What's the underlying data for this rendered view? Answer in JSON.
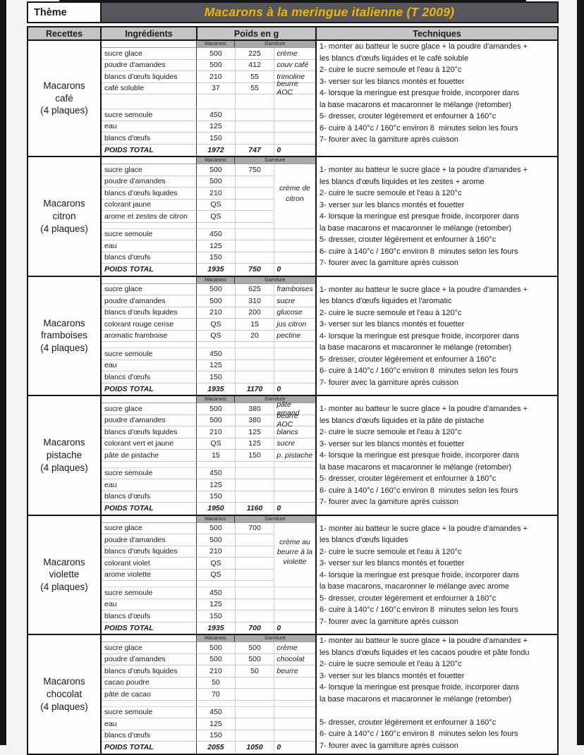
{
  "page": {
    "theme_label": "Thème",
    "title": "Macarons à la meringue italienne (T 2009)",
    "columns": {
      "recettes": "Recettes",
      "ingredients": "Ingrédients",
      "poids": "Poids en g",
      "techniques": "Techniques"
    },
    "subheaders": {
      "macarons": "Macarons",
      "garniture": "Garniture"
    },
    "colors": {
      "title_band": "#56575a",
      "title_text": "#efb40c",
      "header_fill": "#c4c4c2",
      "subheader_fill": "#a9a9a7",
      "border": "#161616"
    }
  },
  "recipes": [
    {
      "key": "cafe",
      "name_lines": [
        "Macarons",
        "café",
        "(4 plaques)"
      ],
      "gap": "large",
      "tech_flush": true,
      "merged_label": null,
      "base_rows": [
        {
          "ing": "sucre glace",
          "mac": "500",
          "garn": "225",
          "lab": "crème"
        },
        {
          "ing": "poudre d'amandes",
          "mac": "500",
          "garn": "412",
          "lab": "couv café"
        },
        {
          "ing": "blancs d'œufs liquides",
          "mac": "210",
          "garn": "55",
          "lab": "trimoline"
        },
        {
          "ing": "café soluble",
          "mac": "37",
          "garn": "55",
          "lab": "beurre AOC"
        }
      ],
      "meringue_rows": [
        {
          "ing": "sucre semoule",
          "mac": "450"
        },
        {
          "ing": "eau",
          "mac": "125"
        },
        {
          "ing": "blancs d'œufs",
          "mac": "150"
        }
      ],
      "total": {
        "label": "POIDS TOTAL",
        "mac": "1972",
        "garn": "747",
        "zero": "0"
      },
      "tech_lines": [
        "1- monter au batteur le sucre glace + la poudre d'amandes +",
        "les blancs d'œufs liquides et le café soluble",
        "2- cuire le sucre semoule et l'eau à 120°c",
        "3- verser sur les blancs montés et fouetter",
        "4- lorsque la meringue est presque froide, incorporer dans",
        "la base macarons et macaronner le mélange (retomber)",
        "5- dresser, crouter légèrement et enfourner à 160°c",
        "6- cuire à 140°c / 160°c environ 8  minutes selon les fours",
        "7- fourer avec la garniture après cuisson"
      ]
    },
    {
      "key": "citron",
      "name_lines": [
        "Macarons",
        "citron",
        "(4 plaques)"
      ],
      "gap": "small",
      "tech_flush": false,
      "merged_label": "crème de citron",
      "base_rows": [
        {
          "ing": "sucre glace",
          "mac": "500",
          "garn": "750",
          "lab": ""
        },
        {
          "ing": "poudre d'amandes",
          "mac": "500",
          "garn": "",
          "lab": ""
        },
        {
          "ing": "blancs d'œufs liquides",
          "mac": "210",
          "garn": "",
          "lab": ""
        },
        {
          "ing": "colorant jaune",
          "mac": "QS",
          "garn": "",
          "lab": ""
        },
        {
          "ing": "arome et zestes de citron",
          "mac": "QS",
          "garn": "",
          "lab": ""
        }
      ],
      "meringue_rows": [
        {
          "ing": "sucre semoule",
          "mac": "450"
        },
        {
          "ing": "eau",
          "mac": "125"
        },
        {
          "ing": "blancs d'œufs",
          "mac": "150"
        }
      ],
      "total": {
        "label": "POIDS TOTAL",
        "mac": "1935",
        "garn": "750",
        "zero": "0"
      },
      "tech_lines": [
        "1- monter au batteur le sucre glace + la poudre d'amandes +",
        "les blancs d'œufs liquides et les zestes + arome",
        "2- cuire le sucre semoule et l'eau à 120°c",
        "3- verser sur les blancs montés et fouetter",
        "4- lorsque la meringue est presque froide, incorporer dans",
        "la base macarons et macaronner le mélange (retomber)",
        "5- dresser, crouter légèrement et enfourner à 160°c",
        "6- cuire à 140°c / 160°c environ 8  minutes selon les fours",
        "7- fourer avec la garniture après cuisson"
      ]
    },
    {
      "key": "framboises",
      "name_lines": [
        "Macarons",
        "framboises",
        "(4 plaques)"
      ],
      "gap": "small",
      "tech_flush": false,
      "merged_label": null,
      "base_rows": [
        {
          "ing": "sucre glace",
          "mac": "500",
          "garn": "625",
          "lab": "framboises"
        },
        {
          "ing": "poudre d'amandes",
          "mac": "500",
          "garn": "310",
          "lab": "sucre"
        },
        {
          "ing": "blancs d'œufs liquides",
          "mac": "210",
          "garn": "200",
          "lab": "glucose"
        },
        {
          "ing": "colorant rouge cerise",
          "mac": "QS",
          "garn": "15",
          "lab": "jus citron"
        },
        {
          "ing": "aromatic framboise",
          "mac": "QS",
          "garn": "20",
          "lab": "pectine"
        }
      ],
      "meringue_rows": [
        {
          "ing": "sucre semoule",
          "mac": "450"
        },
        {
          "ing": "eau",
          "mac": "125"
        },
        {
          "ing": "blancs d'œufs",
          "mac": "150"
        }
      ],
      "total": {
        "label": "POIDS TOTAL",
        "mac": "1935",
        "garn": "1170",
        "zero": "0"
      },
      "tech_lines": [
        "1- monter au batteur le sucre glace + la poudre d'amandes +",
        "les blancs d'œufs liquides et l'aromatic",
        "2- cuire le sucre semoule et l'eau à 120°c",
        "3- verser sur les blancs montés et fouetter",
        "4- lorsque la meringue est presque froide, incorporer dans",
        "la base macarons et macaronner le mélange (retomber)",
        "5- dresser, crouter légèrement et enfourner à 160°c",
        "6- cuire à 140°c / 160°c environ 8  minutes selon les fours",
        "7- fourer avec la garniture après cuisson"
      ]
    },
    {
      "key": "pistache",
      "name_lines": [
        "Macarons",
        "pistache",
        "(4 plaques)"
      ],
      "gap": "small",
      "tech_flush": false,
      "merged_label": null,
      "base_rows": [
        {
          "ing": "sucre glace",
          "mac": "500",
          "garn": "380",
          "lab": "pâte amand"
        },
        {
          "ing": "poudre d'amandes",
          "mac": "500",
          "garn": "380",
          "lab": "beurre AOC"
        },
        {
          "ing": "blancs d'œufs liquides",
          "mac": "210",
          "garn": "125",
          "lab": "blancs"
        },
        {
          "ing": "colorant vert et jaune",
          "mac": "QS",
          "garn": "125",
          "lab": "sucre"
        },
        {
          "ing": "pâte de pistache",
          "mac": "15",
          "garn": "150",
          "lab": "p. pistache"
        }
      ],
      "meringue_rows": [
        {
          "ing": "sucre semoule",
          "mac": "450"
        },
        {
          "ing": "eau",
          "mac": "125"
        },
        {
          "ing": "blancs d'œufs",
          "mac": "150"
        }
      ],
      "total": {
        "label": "POIDS TOTAL",
        "mac": "1950",
        "garn": "1160",
        "zero": "0"
      },
      "tech_lines": [
        "1- monter au batteur le sucre glace + la poudre d'amandes +",
        "les blancs d'œufs liquides et la pâte de pistache",
        "2- cuire le sucre semoule et l'eau à 120°c",
        "3- verser sur les blancs montés et fouetter",
        "4- lorsque la meringue est presque froide, incorporer dans",
        "la base macarons et macaronner le mélange (retomber)",
        "5- dresser, crouter légèrement et enfourner à 160°c",
        "6- cuire à 140°c / 160°c environ 8  minutes selon les fours",
        "7- fourer avec la garniture après cuisson"
      ]
    },
    {
      "key": "violette",
      "name_lines": [
        "Macarons",
        "violette",
        "(4 plaques)"
      ],
      "gap": "small",
      "tech_flush": false,
      "merged_label": "crème au beurre à la violette",
      "base_rows": [
        {
          "ing": "sucre glace",
          "mac": "500",
          "garn": "700",
          "lab": ""
        },
        {
          "ing": "poudre d'amandes",
          "mac": "500",
          "garn": "",
          "lab": ""
        },
        {
          "ing": "blancs d'œufs liquides",
          "mac": "210",
          "garn": "",
          "lab": ""
        },
        {
          "ing": "colorant violet",
          "mac": "QS",
          "garn": "",
          "lab": ""
        },
        {
          "ing": "arome violette",
          "mac": "QS",
          "garn": "",
          "lab": ""
        }
      ],
      "meringue_rows": [
        {
          "ing": "sucre semoule",
          "mac": "450"
        },
        {
          "ing": "eau",
          "mac": "125"
        },
        {
          "ing": "blancs d'œufs",
          "mac": "150"
        }
      ],
      "total": {
        "label": "POIDS TOTAL",
        "mac": "1935",
        "garn": "700",
        "zero": "0"
      },
      "tech_lines": [
        "1- monter au batteur le sucre glace + la poudre d'amandes +",
        "les blancs d'œufs liquides",
        "2- cuire le sucre semoule et l'eau à 120°c",
        "3- verser sur les blancs montés et fouetter",
        "4- lorsque la meringue est presque froide, incorporer dans",
        "la base macarons, macaronner le mélange avec arome",
        "5- dresser, crouter légèrement et enfourner à 160°c",
        "6- cuire à 140°c / 160°c environ 8  minutes selon les fours",
        "7- fourer avec la garniture après cuisson"
      ]
    },
    {
      "key": "chocolat",
      "name_lines": [
        "Macarons",
        "chocolat",
        "(4 plaques)"
      ],
      "gap": "small",
      "tech_flush": true,
      "merged_label": null,
      "base_rows": [
        {
          "ing": "sucre glace",
          "mac": "500",
          "garn": "500",
          "lab": "crème"
        },
        {
          "ing": "poudre d'amandes",
          "mac": "500",
          "garn": "500",
          "lab": "chocolat"
        },
        {
          "ing": "blancs d'œufs liquides",
          "mac": "210",
          "garn": "50",
          "lab": "beurre"
        },
        {
          "ing": "cacao poudre",
          "mac": "50",
          "garn": "",
          "lab": ""
        },
        {
          "ing": "pâte de cacao",
          "mac": "70",
          "garn": "",
          "lab": ""
        }
      ],
      "meringue_rows": [
        {
          "ing": "sucre semoule",
          "mac": "450"
        },
        {
          "ing": "eau",
          "mac": "125"
        },
        {
          "ing": "blancs d'œufs",
          "mac": "150"
        }
      ],
      "total": {
        "label": "POIDS TOTAL",
        "mac": "2055",
        "garn": "1050",
        "zero": "0"
      },
      "tech_lines": [
        "1- monter au batteur le sucre glace + la poudre d'amandes +",
        "les blancs d'œufs liquides et les cacaos poudre et pâte fondu",
        "2- cuire le sucre semoule et l'eau à 120°c",
        "3- verser sur les blancs montés et fouetter",
        "4- lorsque la meringue est presque froide, incorporer dans",
        "la base macarons et macaronner le mélange (retomber)",
        "",
        "5- dresser, crouter légèrement et enfourner à 160°c",
        "6- cuire à 140°c / 160°c environ 8  minutes selon les fours",
        "7- fourer avec la garniture après cuisson"
      ]
    }
  ]
}
